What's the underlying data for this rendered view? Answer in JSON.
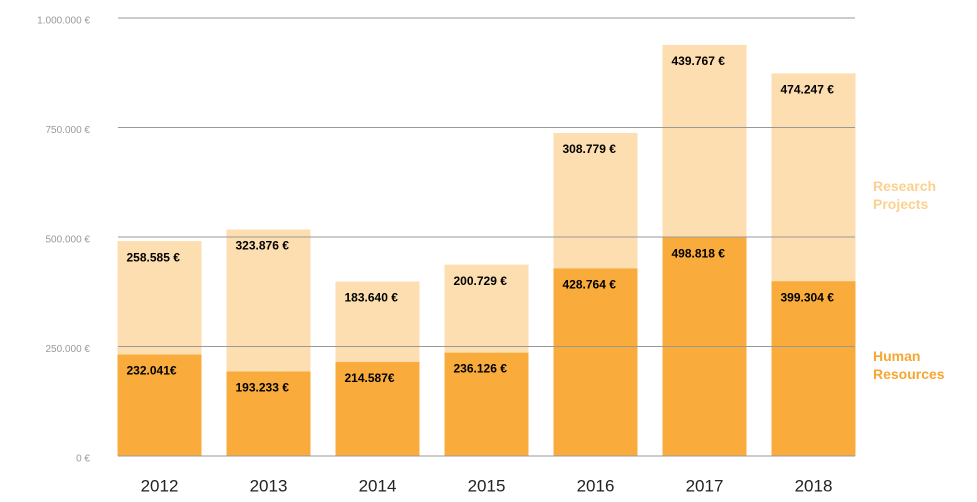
{
  "chart_data": {
    "type": "stacked_bar",
    "categories": [
      "2012",
      "2013",
      "2014",
      "2015",
      "2016",
      "2017",
      "2018"
    ],
    "series": [
      {
        "name": "Human Resources",
        "color": "#f9ac3c",
        "values": [
          232041,
          193233,
          214587,
          236126,
          428764,
          498818,
          399304
        ],
        "value_labels": [
          "232.041€",
          "193.233 €",
          "214.587€",
          "236.126 €",
          "428.764 €",
          "498.818 €",
          "399.304 €"
        ]
      },
      {
        "name": "Research Projects",
        "color": "#fddeb0",
        "values": [
          258585,
          323876,
          183640,
          200729,
          308779,
          439767,
          474247
        ],
        "value_labels": [
          "258.585 €",
          "323.876 €",
          "183.640 €",
          "200.729 €",
          "308.779 €",
          "439.767 €",
          "474.247 €"
        ]
      }
    ],
    "ylim": [
      0,
      1000000
    ],
    "yticks": [
      {
        "value": 0,
        "label": "0 €"
      },
      {
        "value": 250000,
        "label": "250.000 €"
      },
      {
        "value": 500000,
        "label": "500.000 €"
      },
      {
        "value": 750000,
        "label": "750.000 €"
      },
      {
        "value": 1000000,
        "label": "1.000.000 €"
      }
    ],
    "grid": true
  }
}
